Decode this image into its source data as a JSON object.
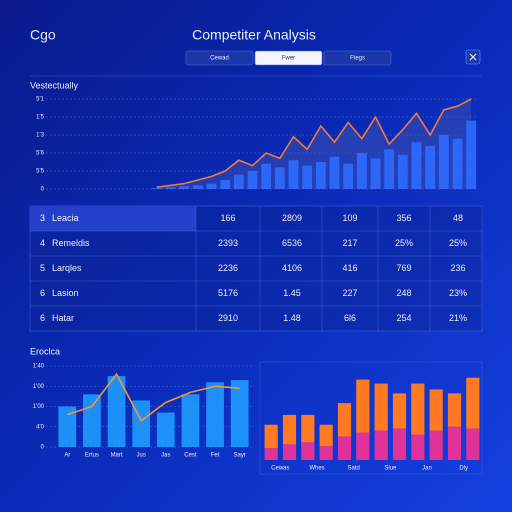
{
  "header": {
    "logo": "Cgo",
    "title": "Competiter Analysis",
    "tabs": [
      "Cewad",
      "Fwer",
      "Ftegs"
    ],
    "active_tab": 1
  },
  "chart_data": [
    {
      "type": "combo",
      "title": "Vestectually",
      "ylim": [
        0,
        5
      ],
      "yticks": [
        {
          "value": 0,
          "label": "0"
        },
        {
          "value": 1,
          "label": "5'5"
        },
        {
          "value": 2,
          "label": "5'6"
        },
        {
          "value": 3,
          "label": "1'3"
        },
        {
          "value": 4,
          "label": "1'5"
        },
        {
          "value": 5,
          "label": "5'1"
        }
      ],
      "grid": true,
      "bars": {
        "color": "#2f6bff",
        "values": [
          0.05,
          0.1,
          0.15,
          0.2,
          0.3,
          0.5,
          0.8,
          1.0,
          1.4,
          1.2,
          1.6,
          1.3,
          1.5,
          1.8,
          1.4,
          2.0,
          1.7,
          2.2,
          1.9,
          2.6,
          2.4,
          3.0,
          2.8,
          3.8
        ]
      },
      "line": {
        "color": "#f07a3a",
        "values": [
          0.1,
          0.2,
          0.3,
          0.5,
          0.7,
          1.0,
          1.6,
          1.3,
          2.0,
          1.7,
          2.9,
          2.2,
          3.5,
          2.6,
          3.7,
          2.8,
          4.0,
          2.5,
          3.3,
          4.2,
          3.0,
          4.4,
          4.6,
          5.0
        ]
      }
    },
    {
      "type": "combo",
      "title": "Eroclca",
      "categories": [
        "Ar",
        "Ertus",
        "Mart",
        "Jus",
        "Jas",
        "Cest",
        "Fet",
        "Sayr"
      ],
      "ylim": [
        0,
        4
      ],
      "yticks": [
        {
          "value": 0,
          "label": "0"
        },
        {
          "value": 1,
          "label": "4'0"
        },
        {
          "value": 2,
          "label": "1'00"
        },
        {
          "value": 3,
          "label": "1'00"
        },
        {
          "value": 4,
          "label": "1'40"
        }
      ],
      "grid": true,
      "bars": {
        "color": "#1f9bff",
        "values": [
          2.0,
          2.6,
          3.5,
          2.3,
          1.7,
          2.6,
          3.2,
          3.3
        ]
      },
      "line": {
        "color": "#f5962f",
        "values": [
          1.6,
          2.0,
          3.6,
          1.3,
          2.2,
          2.7,
          3.0,
          2.9
        ]
      }
    },
    {
      "type": "stacked_bar",
      "categories": [
        "Cewas",
        null,
        "Whes",
        null,
        "Satd",
        null,
        "Slue",
        null,
        "Jan",
        null,
        "Dly",
        null
      ],
      "ylim": [
        0,
        5
      ],
      "series": [
        {
          "color": "#e0339a",
          "values": [
            0.6,
            0.8,
            0.9,
            0.7,
            1.2,
            1.4,
            1.5,
            1.6,
            1.3,
            1.5,
            1.7,
            1.6
          ]
        },
        {
          "color": "#ff7a22",
          "values": [
            1.2,
            1.5,
            1.4,
            1.1,
            1.7,
            2.7,
            2.4,
            1.8,
            2.6,
            2.1,
            1.7,
            2.6
          ]
        }
      ]
    }
  ],
  "table": {
    "rows": [
      [
        "3",
        "Leacia",
        "166",
        "2809",
        "109",
        "356",
        "48"
      ],
      [
        "4",
        "Remeldis",
        "2393",
        "6536",
        "217",
        "25%",
        "25%"
      ],
      [
        "5",
        "Larqles",
        "2236",
        "4106",
        "416",
        "769",
        "236"
      ],
      [
        "6",
        "Lasion",
        "5176",
        "1.45",
        "227",
        "248",
        "23%"
      ],
      [
        "6",
        "Hatar",
        "2910",
        "1.48",
        "6l6",
        "254",
        "21%"
      ]
    ],
    "highlighted_row": 0
  }
}
